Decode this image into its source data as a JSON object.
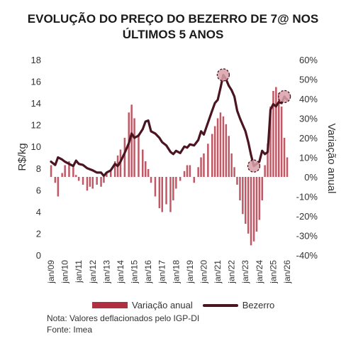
{
  "title_line1": "EVOLUÇÃO DO PREÇO DO BEZERRO DE 7@ NOS",
  "title_line2": "ÚLTIMOS 5 ANOS",
  "legend": {
    "bar_label": "Variação anual",
    "line_label": "Bezerro"
  },
  "note": "Nota: Valores deflacionados pelo IGP-DI",
  "source": "Fonte: Imea",
  "colors": {
    "bars": "#b0303f",
    "line": "#4a1420",
    "highlight_fill": "#d9a1aa"
  },
  "chart_data": {
    "type": "bar+line",
    "ylabel": "R$/kg",
    "y2label": "Variação anual",
    "ylim": [
      0,
      18
    ],
    "y2lim": [
      -40,
      60
    ],
    "yticks": [
      "0",
      "2",
      "4",
      "6",
      "8",
      "10",
      "12",
      "14",
      "16",
      "18"
    ],
    "y2ticks": [
      "-40%",
      "-30%",
      "-20%",
      "-10%",
      "0%",
      "10%",
      "20%",
      "30%",
      "40%",
      "50%",
      "60%"
    ],
    "xticks": [
      "jan/09",
      "jan/10",
      "jan/11",
      "jan/12",
      "jan/13",
      "jan/14",
      "jan/15",
      "jan/16",
      "jan/17",
      "jan/18",
      "jan/19",
      "jan/20",
      "jan/21",
      "jan/22",
      "jan/23",
      "jan/24",
      "jan/25",
      "jan/26"
    ],
    "x_start_year": 2009,
    "bezerro_price": [
      [
        2009.0,
        8.6
      ],
      [
        2009.3,
        8.3
      ],
      [
        2009.5,
        9.0
      ],
      [
        2009.8,
        8.8
      ],
      [
        2010.0,
        8.6
      ],
      [
        2010.3,
        8.4
      ],
      [
        2010.6,
        8.2
      ],
      [
        2010.8,
        8.7
      ],
      [
        2011.0,
        8.4
      ],
      [
        2011.3,
        8.3
      ],
      [
        2011.6,
        8.0
      ],
      [
        2011.8,
        7.9
      ],
      [
        2012.0,
        7.8
      ],
      [
        2012.3,
        7.6
      ],
      [
        2012.6,
        7.6
      ],
      [
        2012.8,
        7.3
      ],
      [
        2013.0,
        7.6
      ],
      [
        2013.3,
        7.8
      ],
      [
        2013.6,
        8.4
      ],
      [
        2013.8,
        8.2
      ],
      [
        2014.0,
        8.6
      ],
      [
        2014.3,
        9.4
      ],
      [
        2014.6,
        10.3
      ],
      [
        2014.8,
        11.2
      ],
      [
        2015.0,
        10.8
      ],
      [
        2015.3,
        11.0
      ],
      [
        2015.6,
        11.6
      ],
      [
        2015.8,
        12.3
      ],
      [
        2016.0,
        12.4
      ],
      [
        2016.2,
        11.4
      ],
      [
        2016.5,
        11.2
      ],
      [
        2016.8,
        10.8
      ],
      [
        2017.0,
        10.4
      ],
      [
        2017.3,
        10.1
      ],
      [
        2017.6,
        9.5
      ],
      [
        2017.8,
        9.3
      ],
      [
        2018.0,
        9.6
      ],
      [
        2018.3,
        9.4
      ],
      [
        2018.6,
        10.0
      ],
      [
        2018.8,
        9.9
      ],
      [
        2019.0,
        10.2
      ],
      [
        2019.3,
        10.1
      ],
      [
        2019.6,
        10.6
      ],
      [
        2019.8,
        11.4
      ],
      [
        2020.0,
        11.1
      ],
      [
        2020.3,
        12.2
      ],
      [
        2020.6,
        13.3
      ],
      [
        2020.8,
        14.0
      ],
      [
        2021.0,
        14.3
      ],
      [
        2021.2,
        15.4
      ],
      [
        2021.4,
        16.6
      ],
      [
        2021.6,
        16.2
      ],
      [
        2021.8,
        15.6
      ],
      [
        2022.0,
        15.2
      ],
      [
        2022.2,
        14.6
      ],
      [
        2022.4,
        13.3
      ],
      [
        2022.6,
        12.6
      ],
      [
        2022.8,
        12.0
      ],
      [
        2023.0,
        11.4
      ],
      [
        2023.2,
        10.4
      ],
      [
        2023.4,
        9.2
      ],
      [
        2023.6,
        8.2
      ],
      [
        2023.8,
        8.4
      ],
      [
        2024.0,
        8.6
      ],
      [
        2024.2,
        9.6
      ],
      [
        2024.4,
        9.3
      ],
      [
        2024.6,
        9.5
      ],
      [
        2024.8,
        13.4
      ],
      [
        2025.0,
        13.9
      ],
      [
        2025.2,
        13.7
      ],
      [
        2025.4,
        14.1
      ],
      [
        2025.6,
        14.0
      ],
      [
        2025.8,
        14.6
      ],
      [
        2026.0,
        14.3
      ]
    ],
    "variacao_anual": [
      [
        2009.0,
        6
      ],
      [
        2009.3,
        -3
      ],
      [
        2009.5,
        -10
      ],
      [
        2009.8,
        2
      ],
      [
        2010.0,
        6
      ],
      [
        2010.3,
        8
      ],
      [
        2010.6,
        5
      ],
      [
        2010.8,
        1
      ],
      [
        2011.0,
        -2
      ],
      [
        2011.3,
        -4
      ],
      [
        2011.6,
        -7
      ],
      [
        2011.8,
        -5
      ],
      [
        2012.0,
        -6
      ],
      [
        2012.3,
        -4
      ],
      [
        2012.6,
        -5
      ],
      [
        2012.8,
        -3
      ],
      [
        2013.0,
        2
      ],
      [
        2013.3,
        3
      ],
      [
        2013.6,
        8
      ],
      [
        2013.8,
        11
      ],
      [
        2014.0,
        14
      ],
      [
        2014.3,
        20
      ],
      [
        2014.6,
        33
      ],
      [
        2014.8,
        37
      ],
      [
        2015.0,
        30
      ],
      [
        2015.3,
        22
      ],
      [
        2015.6,
        14
      ],
      [
        2015.8,
        8
      ],
      [
        2016.0,
        4
      ],
      [
        2016.2,
        -3
      ],
      [
        2016.5,
        -10
      ],
      [
        2016.8,
        -16
      ],
      [
        2017.0,
        -18
      ],
      [
        2017.3,
        -14
      ],
      [
        2017.6,
        -18
      ],
      [
        2017.8,
        -12
      ],
      [
        2018.0,
        -6
      ],
      [
        2018.3,
        -2
      ],
      [
        2018.6,
        3
      ],
      [
        2018.8,
        6
      ],
      [
        2019.0,
        6
      ],
      [
        2019.3,
        -3
      ],
      [
        2019.6,
        5
      ],
      [
        2019.8,
        10
      ],
      [
        2020.0,
        12
      ],
      [
        2020.3,
        17
      ],
      [
        2020.6,
        22
      ],
      [
        2020.8,
        26
      ],
      [
        2021.0,
        30
      ],
      [
        2021.2,
        33
      ],
      [
        2021.4,
        31
      ],
      [
        2021.6,
        27
      ],
      [
        2021.8,
        21
      ],
      [
        2022.0,
        12
      ],
      [
        2022.2,
        5
      ],
      [
        2022.4,
        -4
      ],
      [
        2022.6,
        -12
      ],
      [
        2022.8,
        -19
      ],
      [
        2023.0,
        -24
      ],
      [
        2023.2,
        -29
      ],
      [
        2023.4,
        -35
      ],
      [
        2023.6,
        -33
      ],
      [
        2023.8,
        -28
      ],
      [
        2024.0,
        -22
      ],
      [
        2024.2,
        -12
      ],
      [
        2024.4,
        6
      ],
      [
        2024.6,
        17
      ],
      [
        2024.8,
        36
      ],
      [
        2025.0,
        44
      ],
      [
        2025.2,
        46
      ],
      [
        2025.4,
        43
      ],
      [
        2025.6,
        36
      ],
      [
        2025.8,
        20
      ],
      [
        2026.0,
        10
      ]
    ],
    "highlighted_points": [
      [
        2021.4,
        16.6
      ],
      [
        2023.6,
        8.2
      ],
      [
        2025.8,
        14.6
      ]
    ]
  }
}
